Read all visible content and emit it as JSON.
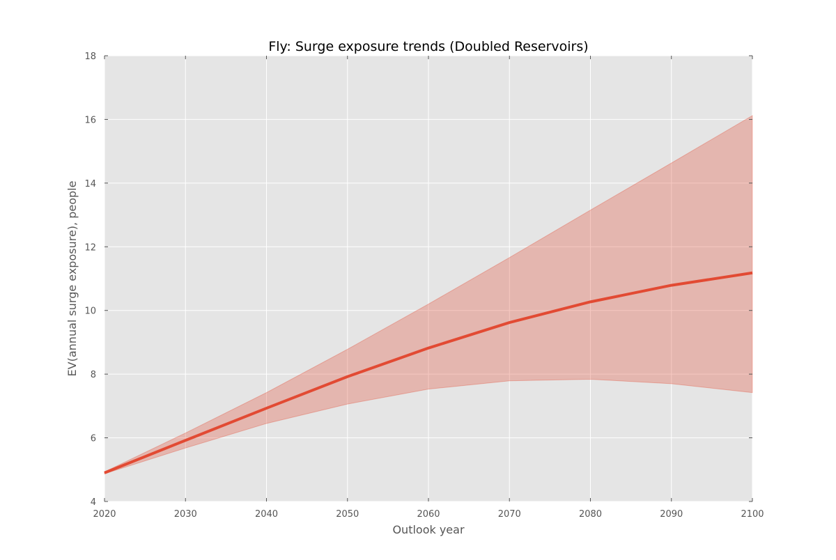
{
  "chart_data": {
    "type": "line",
    "title": "Fly: Surge exposure trends (Doubled Reservoirs)",
    "xlabel": "Outlook year",
    "ylabel": "EV(annual surge exposure), people",
    "xlim": [
      2020,
      2100
    ],
    "ylim": [
      4,
      18
    ],
    "x_ticks": [
      "2020",
      "2030",
      "2040",
      "2050",
      "2060",
      "2070",
      "2080",
      "2090",
      "2100"
    ],
    "y_ticks": [
      "4",
      "6",
      "8",
      "10",
      "12",
      "14",
      "16",
      "18"
    ],
    "grid": true,
    "legend": "none",
    "x": [
      2020,
      2030,
      2040,
      2050,
      2060,
      2070,
      2080,
      2090,
      2100
    ],
    "series": [
      {
        "values": [
          4.9,
          5.92,
          6.93,
          7.92,
          8.82,
          9.62,
          10.27,
          10.79,
          11.18
        ],
        "band_lower": [
          4.87,
          5.68,
          6.45,
          7.06,
          7.53,
          7.79,
          7.84,
          7.7,
          7.42
        ],
        "band_upper": [
          4.93,
          6.15,
          7.42,
          8.78,
          10.2,
          11.66,
          13.15,
          14.63,
          16.12
        ],
        "color": "#e24a33",
        "band_color": "#e24a33"
      }
    ],
    "colors": {
      "plot_background": "#e5e5e5",
      "grid": "#ffffff"
    }
  }
}
